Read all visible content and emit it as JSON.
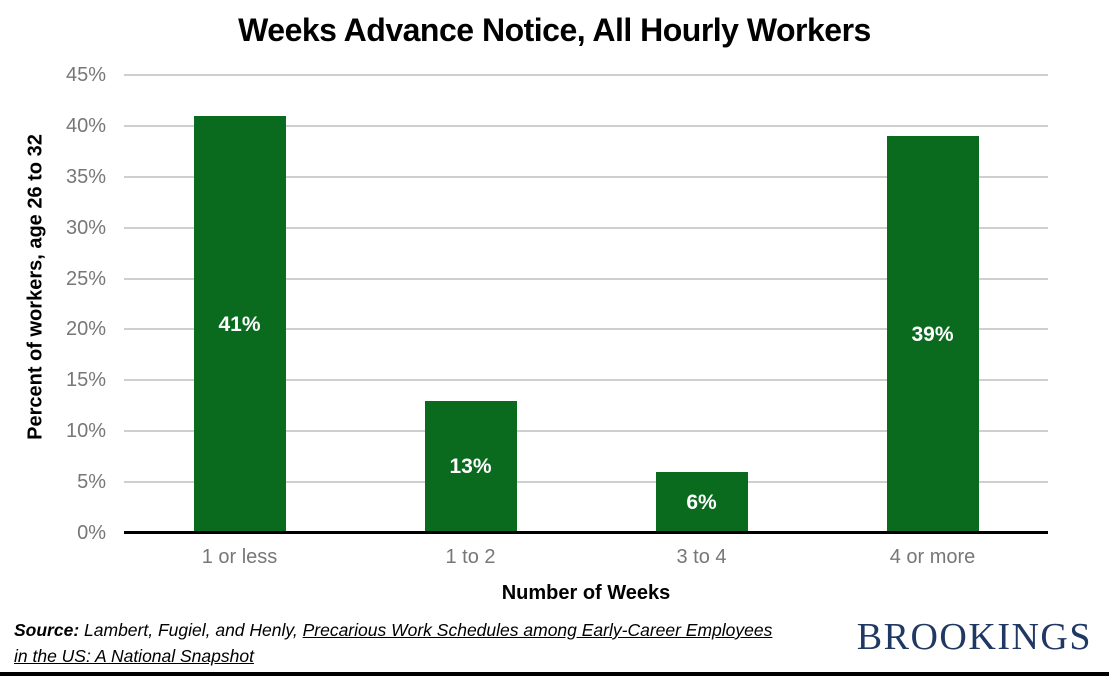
{
  "chart_data": {
    "type": "bar",
    "title": "Weeks Advance Notice, All Hourly Workers",
    "categories": [
      "1 or less",
      "1 to 2",
      "3 to 4",
      "4 or more"
    ],
    "values": [
      41,
      13,
      6,
      39
    ],
    "value_labels": [
      "41%",
      "13%",
      "6%",
      "39%"
    ],
    "xlabel": "Number of Weeks",
    "ylabel": "Percent of workers, age 26 to 32",
    "ylim": [
      0,
      45
    ],
    "ytick_step": 5,
    "ytick_labels": [
      "0%",
      "5%",
      "10%",
      "15%",
      "20%",
      "25%",
      "30%",
      "35%",
      "40%",
      "45%"
    ],
    "grid": true,
    "legend": "none",
    "bar_color": "#0A6B1F",
    "value_label_color": "#FFFFFF"
  },
  "footer": {
    "source_prefix": "Source:",
    "source_authors": "Lambert, Fugiel, and Henly,",
    "source_title_line1": "Precarious Work Schedules among Early-Career Employees",
    "source_title_line2": "in the US: A National Snapshot",
    "logo_text": "BROOKINGS"
  },
  "colors": {
    "bar_green": "#0A6B1F",
    "tick_label_gray": "#777777",
    "gridline_gray": "#CFCFCF",
    "axis_black": "#000000",
    "brookings_navy": "#203864"
  }
}
